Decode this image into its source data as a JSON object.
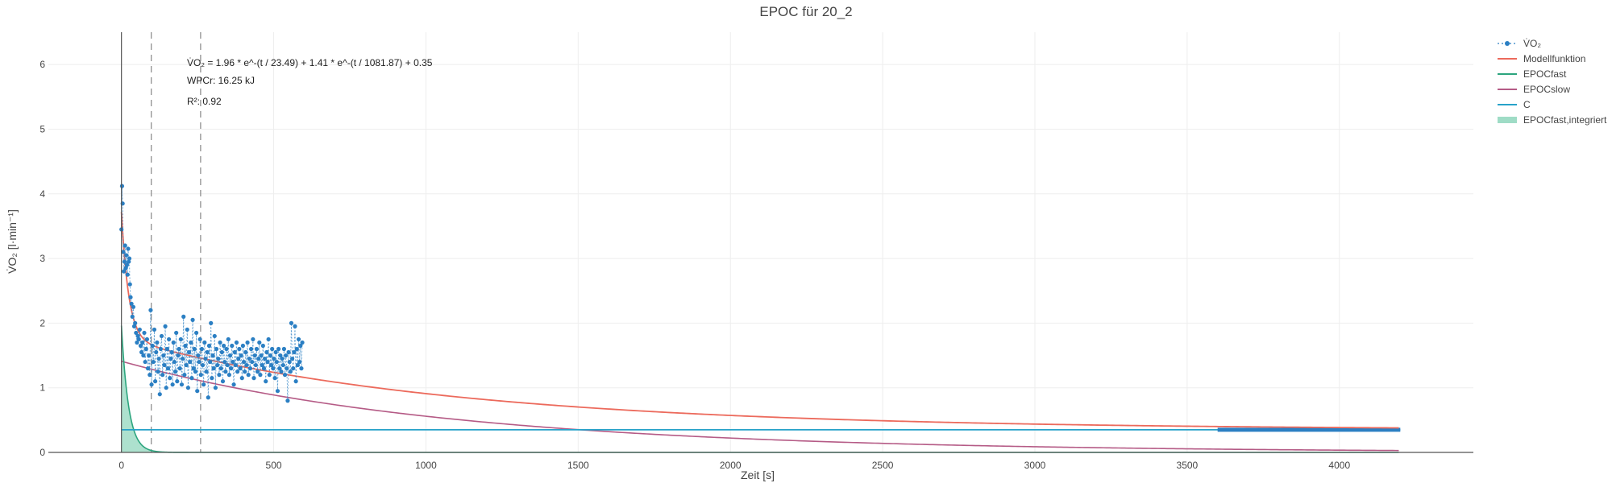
{
  "chart_data": {
    "type": "scatter",
    "title": "EPOC für 20_2",
    "xlabel": "Zeit [s]",
    "ylabel": "V̇O₂ [l·min⁻¹]",
    "xlim": [
      -240,
      4440
    ],
    "ylim": [
      0,
      6.5
    ],
    "x_ticks": [
      0,
      500,
      1000,
      1500,
      2000,
      2500,
      3000,
      3500,
      4000
    ],
    "x_tick_labels": [
      "0",
      "500",
      "1000",
      "1500",
      "2000",
      "2500",
      "3000",
      "3500",
      "4000"
    ],
    "y_ticks": [
      0,
      1,
      2,
      3,
      4,
      5,
      6
    ],
    "y_tick_labels": [
      "0",
      "1",
      "2",
      "3",
      "4",
      "5",
      "6"
    ],
    "grid": true,
    "legend_position": "top-right",
    "colors": {
      "vo2": "#2b7fc3",
      "model": "#ec6a5c",
      "epoc_fast": "#2ca57e",
      "epoc_slow": "#b55b86",
      "c": "#27a2c9",
      "epoc_fast_integrated": "#9fdcc6"
    },
    "legend": {
      "vo2": "V̇O₂",
      "model": "Modellfunktion",
      "epoc_fast": "EPOCfast",
      "epoc_slow": "EPOCslow",
      "c": "C",
      "epoc_fast_integrated": "EPOCfast,integriert"
    },
    "model_params": {
      "a1": 1.96,
      "tau1": 23.49,
      "a2": 1.41,
      "tau2": 1081.87,
      "c": 0.35
    },
    "vertical_markers": [
      98,
      260
    ],
    "x_end": 4200,
    "tail_segment": [
      3600,
      4200
    ],
    "annotations": {
      "equation": "V̇O₂ = 1.96 * e^-(t / 23.49) + 1.41 * e^-(t / 1081.87) + 0.35",
      "work": "WPCr: 16.25 kJ",
      "r2": "R²: 0.92"
    },
    "vo2_points": [
      [
        0,
        3.45
      ],
      [
        2,
        4.12
      ],
      [
        4,
        3.85
      ],
      [
        6,
        3.1
      ],
      [
        8,
        2.8
      ],
      [
        10,
        2.95
      ],
      [
        12,
        3.2
      ],
      [
        14,
        2.85
      ],
      [
        16,
        3.05
      ],
      [
        18,
        2.9
      ],
      [
        20,
        2.75
      ],
      [
        22,
        3.15
      ],
      [
        24,
        2.95
      ],
      [
        26,
        3.0
      ],
      [
        28,
        2.6
      ],
      [
        30,
        2.4
      ],
      [
        33,
        2.3
      ],
      [
        36,
        2.1
      ],
      [
        39,
        2.25
      ],
      [
        42,
        1.95
      ],
      [
        45,
        2.0
      ],
      [
        48,
        1.85
      ],
      [
        51,
        1.7
      ],
      [
        54,
        1.8
      ],
      [
        57,
        1.75
      ],
      [
        60,
        1.9
      ],
      [
        63,
        1.65
      ],
      [
        66,
        1.55
      ],
      [
        69,
        1.7
      ],
      [
        72,
        1.5
      ],
      [
        75,
        1.85
      ],
      [
        78,
        1.4
      ],
      [
        81,
        1.6
      ],
      [
        84,
        1.75
      ],
      [
        87,
        1.3
      ],
      [
        90,
        1.5
      ],
      [
        93,
        1.2
      ],
      [
        96,
        2.2
      ],
      [
        99,
        1.05
      ],
      [
        102,
        1.65
      ],
      [
        105,
        1.4
      ],
      [
        108,
        1.9
      ],
      [
        111,
        1.1
      ],
      [
        114,
        1.55
      ],
      [
        117,
        1.7
      ],
      [
        120,
        1.25
      ],
      [
        123,
        1.45
      ],
      [
        126,
        0.9
      ],
      [
        129,
        1.6
      ],
      [
        132,
        1.8
      ],
      [
        135,
        1.2
      ],
      [
        138,
        1.5
      ],
      [
        141,
        1.35
      ],
      [
        144,
        1.95
      ],
      [
        147,
        1.0
      ],
      [
        150,
        1.6
      ],
      [
        153,
        1.3
      ],
      [
        156,
        1.75
      ],
      [
        159,
        1.15
      ],
      [
        162,
        1.45
      ],
      [
        165,
        1.55
      ],
      [
        168,
        1.05
      ],
      [
        171,
        1.7
      ],
      [
        174,
        1.4
      ],
      [
        177,
        1.25
      ],
      [
        180,
        1.85
      ],
      [
        183,
        1.1
      ],
      [
        186,
        1.5
      ],
      [
        189,
        1.6
      ],
      [
        192,
        1.3
      ],
      [
        195,
        1.75
      ],
      [
        198,
        1.05
      ],
      [
        201,
        1.45
      ],
      [
        204,
        2.1
      ],
      [
        207,
        1.2
      ],
      [
        210,
        1.65
      ],
      [
        213,
        1.35
      ],
      [
        216,
        1.9
      ],
      [
        219,
        1.0
      ],
      [
        222,
        1.55
      ],
      [
        225,
        1.4
      ],
      [
        228,
        1.7
      ],
      [
        231,
        1.15
      ],
      [
        234,
        2.05
      ],
      [
        237,
        1.3
      ],
      [
        240,
        1.6
      ],
      [
        243,
        1.25
      ],
      [
        246,
        1.85
      ],
      [
        249,
        0.95
      ],
      [
        252,
        1.5
      ],
      [
        255,
        1.4
      ],
      [
        258,
        1.75
      ],
      [
        261,
        1.2
      ],
      [
        264,
        1.6
      ],
      [
        267,
        1.35
      ],
      [
        270,
        1.05
      ],
      [
        273,
        1.7
      ],
      [
        276,
        1.45
      ],
      [
        279,
        1.25
      ],
      [
        282,
        1.55
      ],
      [
        285,
        0.85
      ],
      [
        288,
        1.65
      ],
      [
        291,
        1.4
      ],
      [
        294,
        2.0
      ],
      [
        297,
        1.15
      ],
      [
        300,
        1.5
      ],
      [
        303,
        1.3
      ],
      [
        306,
        1.8
      ],
      [
        309,
        1.0
      ],
      [
        312,
        1.6
      ],
      [
        315,
        1.35
      ],
      [
        318,
        1.45
      ],
      [
        321,
        1.2
      ],
      [
        324,
        1.7
      ],
      [
        327,
        1.3
      ],
      [
        330,
        1.55
      ],
      [
        333,
        1.1
      ],
      [
        336,
        1.65
      ],
      [
        339,
        1.4
      ],
      [
        342,
        1.25
      ],
      [
        345,
        1.6
      ],
      [
        348,
        1.35
      ],
      [
        351,
        1.75
      ],
      [
        354,
        1.2
      ],
      [
        357,
        1.5
      ],
      [
        360,
        1.3
      ],
      [
        363,
        1.65
      ],
      [
        366,
        1.4
      ],
      [
        369,
        1.05
      ],
      [
        372,
        1.55
      ],
      [
        375,
        1.35
      ],
      [
        378,
        1.7
      ],
      [
        381,
        1.25
      ],
      [
        384,
        1.45
      ],
      [
        387,
        1.6
      ],
      [
        390,
        1.3
      ],
      [
        393,
        1.5
      ],
      [
        396,
        1.15
      ],
      [
        399,
        1.65
      ],
      [
        402,
        1.4
      ],
      [
        405,
        1.25
      ],
      [
        408,
        1.55
      ],
      [
        411,
        1.35
      ],
      [
        414,
        1.7
      ],
      [
        417,
        1.2
      ],
      [
        420,
        1.45
      ],
      [
        423,
        1.3
      ],
      [
        426,
        1.6
      ],
      [
        429,
        1.4
      ],
      [
        432,
        1.75
      ],
      [
        435,
        1.15
      ],
      [
        438,
        1.5
      ],
      [
        441,
        1.35
      ],
      [
        444,
        1.6
      ],
      [
        447,
        1.25
      ],
      [
        450,
        1.45
      ],
      [
        453,
        1.7
      ],
      [
        456,
        1.2
      ],
      [
        459,
        1.5
      ],
      [
        462,
        1.35
      ],
      [
        465,
        1.65
      ],
      [
        468,
        1.3
      ],
      [
        471,
        1.45
      ],
      [
        474,
        1.1
      ],
      [
        477,
        1.55
      ],
      [
        480,
        1.4
      ],
      [
        483,
        1.75
      ],
      [
        486,
        1.2
      ],
      [
        489,
        1.5
      ],
      [
        492,
        1.35
      ],
      [
        495,
        1.6
      ],
      [
        498,
        1.3
      ],
      [
        501,
        1.45
      ],
      [
        504,
        1.15
      ],
      [
        507,
        1.55
      ],
      [
        510,
        1.4
      ],
      [
        513,
        0.95
      ],
      [
        516,
        1.6
      ],
      [
        519,
        1.3
      ],
      [
        522,
        1.5
      ],
      [
        525,
        1.25
      ],
      [
        528,
        1.45
      ],
      [
        531,
        1.35
      ],
      [
        534,
        1.6
      ],
      [
        537,
        1.2
      ],
      [
        540,
        1.5
      ],
      [
        543,
        1.3
      ],
      [
        546,
        0.8
      ],
      [
        549,
        1.55
      ],
      [
        552,
        1.4
      ],
      [
        555,
        1.25
      ],
      [
        558,
        2.0
      ],
      [
        561,
        1.45
      ],
      [
        564,
        1.3
      ],
      [
        567,
        1.55
      ],
      [
        570,
        1.95
      ],
      [
        573,
        1.1
      ],
      [
        576,
        1.6
      ],
      [
        579,
        1.35
      ],
      [
        582,
        1.75
      ],
      [
        585,
        1.4
      ],
      [
        588,
        1.65
      ],
      [
        591,
        1.3
      ],
      [
        594,
        1.7
      ]
    ]
  }
}
